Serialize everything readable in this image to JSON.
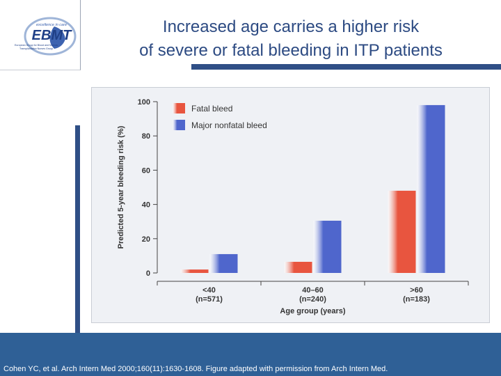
{
  "slide": {
    "title_line1": "Increased age carries a higher risk",
    "title_line2": "of severe or fatal bleeding in ITP patients",
    "footer_citation": "Cohen YC, et al. Arch Intern Med 2000;160(11):1630-1608. Figure adapted with permission from Arch Intern Med.",
    "logo": {
      "tagline": "excellence in care",
      "name": "EBMT",
      "subtitle_line1": "European Group for Blood and Marrow",
      "subtitle_line2": "Transplantation Nurses Group"
    }
  },
  "colors": {
    "title": "#2c4a82",
    "accent_bar": "#2f4f86",
    "footer": "#2f6096",
    "fatal_bleed": "#e8553f",
    "major_nonfatal_bleed": "#4f66cc"
  },
  "chart_data": {
    "type": "bar",
    "categories": [
      "<40",
      "40–60",
      ">60"
    ],
    "category_counts": [
      "(n=571)",
      "(n=240)",
      "(n=183)"
    ],
    "series": [
      {
        "name": "Fatal bleed",
        "values": [
          2,
          6.5,
          48
        ]
      },
      {
        "name": "Major nonfatal bleed",
        "values": [
          11,
          30.5,
          98
        ]
      }
    ],
    "xlabel": "Age group (years)",
    "ylabel": "Predicted 5-year bleeding risk (%)",
    "ylim": [
      0,
      100
    ],
    "yticks": [
      0,
      20,
      40,
      60,
      80,
      100
    ],
    "legend_position": "top-left",
    "grid": false
  }
}
